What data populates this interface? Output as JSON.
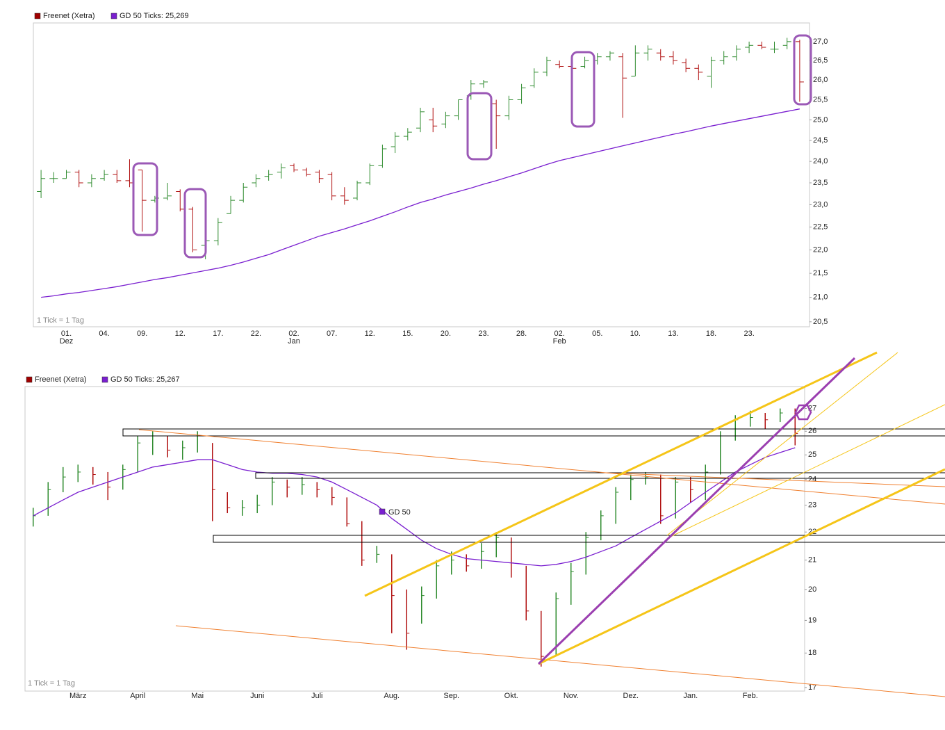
{
  "chart_data": [
    {
      "type": "ohlc",
      "log_scale": true,
      "note": "1 Tick = 1 Tag",
      "up_color": "#2e8b2e",
      "down_color": "#b01010",
      "categories": [
        null,
        null,
        "01.",
        null,
        null,
        "04.",
        null,
        null,
        "09.",
        null,
        null,
        "12.",
        null,
        null,
        "17.",
        null,
        null,
        "22.",
        null,
        null,
        "02.",
        null,
        null,
        "07.",
        null,
        null,
        "12.",
        null,
        null,
        "15.",
        null,
        null,
        "20.",
        null,
        null,
        "23.",
        null,
        null,
        "28.",
        null,
        null,
        "02.",
        null,
        null,
        "05.",
        null,
        null,
        "10.",
        null,
        null,
        "13.",
        null,
        null,
        "18.",
        null,
        null,
        "23.",
        null,
        null,
        null,
        null
      ],
      "x_sublabels": [
        null,
        null,
        "Dez",
        null,
        null,
        null,
        null,
        null,
        null,
        null,
        null,
        null,
        null,
        null,
        null,
        null,
        null,
        null,
        null,
        null,
        "Jan",
        null,
        null,
        null,
        null,
        null,
        null,
        null,
        null,
        null,
        null,
        null,
        null,
        null,
        null,
        null,
        null,
        null,
        null,
        null,
        null,
        "Feb",
        null,
        null,
        null,
        null,
        null,
        null,
        null,
        null,
        null,
        null,
        null,
        null,
        null,
        null,
        null,
        null,
        null,
        null,
        null
      ],
      "series": [
        {
          "name": "Freenet (Xetra)",
          "color": "#a00000",
          "open": [
            23.3,
            23.6,
            23.6,
            23.75,
            23.5,
            23.6,
            23.7,
            23.55,
            23.8,
            23.1,
            23.15,
            23.3,
            22.9,
            22.1,
            22.2,
            22.8,
            23.1,
            23.5,
            23.65,
            23.75,
            23.9,
            23.8,
            23.75,
            23.7,
            23.2,
            23.15,
            23.5,
            23.9,
            24.35,
            24.6,
            24.8,
            25.0,
            24.9,
            25.1,
            25.6,
            25.9,
            25.4,
            25.1,
            25.5,
            25.85,
            26.2,
            26.4,
            26.35,
            26.35,
            26.5,
            26.6,
            26.6,
            26.1,
            26.7,
            26.7,
            26.6,
            26.45,
            26.3,
            26.1,
            26.5,
            26.6,
            26.85,
            26.9,
            26.8,
            26.9,
            27.0
          ],
          "high": [
            23.8,
            23.75,
            23.8,
            23.8,
            23.7,
            23.8,
            23.8,
            24.05,
            23.8,
            23.2,
            23.5,
            23.35,
            22.95,
            22.3,
            22.7,
            23.2,
            23.5,
            23.7,
            23.8,
            23.95,
            23.95,
            23.85,
            23.8,
            23.75,
            23.4,
            23.55,
            23.95,
            24.4,
            24.7,
            24.8,
            25.3,
            25.3,
            25.2,
            25.5,
            26.0,
            26.0,
            25.5,
            25.6,
            25.9,
            26.3,
            26.6,
            26.5,
            26.4,
            26.6,
            26.7,
            26.75,
            26.7,
            26.9,
            26.9,
            26.8,
            26.75,
            26.55,
            26.4,
            26.6,
            26.75,
            26.9,
            27.0,
            27.0,
            27.0,
            27.1,
            27.05
          ],
          "low": [
            23.15,
            23.5,
            23.6,
            23.4,
            23.4,
            23.55,
            23.5,
            23.4,
            22.4,
            23.05,
            23.1,
            22.85,
            21.95,
            21.8,
            22.1,
            22.8,
            23.05,
            23.4,
            23.55,
            23.6,
            23.75,
            23.65,
            23.5,
            23.1,
            23.0,
            23.1,
            23.45,
            23.85,
            24.2,
            24.5,
            24.7,
            24.7,
            24.8,
            25.0,
            25.5,
            25.8,
            24.3,
            25.0,
            25.4,
            25.8,
            26.1,
            26.3,
            26.2,
            26.3,
            26.4,
            26.5,
            25.05,
            26.1,
            26.5,
            26.5,
            26.4,
            26.2,
            26.0,
            25.8,
            26.4,
            26.5,
            26.7,
            26.8,
            26.7,
            26.8,
            25.45
          ],
          "close": [
            23.6,
            23.6,
            23.75,
            23.5,
            23.6,
            23.7,
            23.55,
            23.5,
            23.1,
            23.15,
            23.2,
            22.9,
            22.0,
            22.2,
            22.6,
            23.1,
            23.4,
            23.6,
            23.7,
            23.85,
            23.8,
            23.7,
            23.6,
            23.2,
            23.1,
            23.5,
            23.9,
            24.3,
            24.6,
            24.7,
            25.2,
            24.85,
            25.1,
            25.5,
            25.9,
            25.95,
            25.1,
            25.5,
            25.8,
            26.2,
            26.5,
            26.35,
            26.3,
            26.5,
            26.6,
            26.7,
            26.05,
            26.7,
            26.8,
            26.6,
            26.5,
            26.3,
            26.2,
            26.5,
            26.6,
            26.8,
            26.9,
            26.85,
            26.8,
            27.0,
            25.95
          ]
        },
        {
          "name": "GD 50 Ticks: 25,269",
          "color": "#7a1fd0",
          "values": [
            21.0,
            21.03,
            21.07,
            21.1,
            21.14,
            21.18,
            21.22,
            21.27,
            21.32,
            21.37,
            21.41,
            21.46,
            21.51,
            21.56,
            21.61,
            21.67,
            21.74,
            21.82,
            21.9,
            22.0,
            22.1,
            22.2,
            22.3,
            22.38,
            22.46,
            22.55,
            22.64,
            22.74,
            22.84,
            22.95,
            23.05,
            23.13,
            23.22,
            23.3,
            23.38,
            23.47,
            23.55,
            23.64,
            23.73,
            23.83,
            23.93,
            24.02,
            24.09,
            24.16,
            24.23,
            24.3,
            24.37,
            24.44,
            24.51,
            24.58,
            24.65,
            24.71,
            24.78,
            24.85,
            24.91,
            24.97,
            25.03,
            25.09,
            25.15,
            25.21,
            25.27
          ]
        }
      ],
      "ylim": [
        20.4,
        27.5
      ],
      "yticks": [
        {
          "value": 20.5,
          "label": "20,5"
        },
        {
          "value": 21,
          "label": "21,0"
        },
        {
          "value": 21.5,
          "label": "21,5"
        },
        {
          "value": 22,
          "label": "22,0"
        },
        {
          "value": 22.5,
          "label": "22,5"
        },
        {
          "value": 23,
          "label": "23,0"
        },
        {
          "value": 23.5,
          "label": "23,5"
        },
        {
          "value": 24,
          "label": "24,0"
        },
        {
          "value": 24.5,
          "label": "24,5"
        },
        {
          "value": 25,
          "label": "25,0"
        },
        {
          "value": 25.5,
          "label": "25,5"
        },
        {
          "value": 26,
          "label": "26,0"
        },
        {
          "value": 26.5,
          "label": "26,5"
        },
        {
          "value": 27,
          "label": "27,0"
        }
      ]
    },
    {
      "type": "hlc",
      "log_scale": true,
      "note": "1 Tick = 1 Tag",
      "ma_label": "GD 50",
      "up_color": "#2e8b2e",
      "down_color": "#b01010",
      "categories": [
        null,
        null,
        null,
        "März",
        null,
        null,
        null,
        "April",
        null,
        null,
        null,
        "Mai",
        null,
        null,
        null,
        "Juni",
        null,
        null,
        null,
        "Juli",
        null,
        null,
        null,
        null,
        "Aug.",
        null,
        null,
        null,
        "Sep.",
        null,
        null,
        null,
        "Okt.",
        null,
        null,
        null,
        "Nov.",
        null,
        null,
        null,
        "Dez.",
        null,
        null,
        null,
        "Jan.",
        null,
        null,
        null,
        "Feb.",
        null,
        null,
        null
      ],
      "series": [
        {
          "name": "Freenet (Xetra)",
          "color": "#a00000",
          "high": [
            22.9,
            23.9,
            24.5,
            24.6,
            24.5,
            24.3,
            24.6,
            25.8,
            26.0,
            25.8,
            25.6,
            26.0,
            25.5,
            23.5,
            23.2,
            23.4,
            24.1,
            24.0,
            24.1,
            23.9,
            23.7,
            23.3,
            22.4,
            21.5,
            21.2,
            20.0,
            20.1,
            21.0,
            21.3,
            21.2,
            21.6,
            22.0,
            21.8,
            20.8,
            19.3,
            19.9,
            20.9,
            22.0,
            22.8,
            23.7,
            24.2,
            24.3,
            24.2,
            24.1,
            24.1,
            24.6,
            26.0,
            26.7,
            26.9,
            26.8,
            27.0,
            27.0
          ],
          "low": [
            22.2,
            22.6,
            23.5,
            23.9,
            23.8,
            23.2,
            23.6,
            24.3,
            25.0,
            24.9,
            24.8,
            25.1,
            22.4,
            22.7,
            22.6,
            22.7,
            23.0,
            23.3,
            23.4,
            23.3,
            23.0,
            22.2,
            20.8,
            20.9,
            18.6,
            18.1,
            18.9,
            19.7,
            20.5,
            20.6,
            20.7,
            21.1,
            20.4,
            19.0,
            17.6,
            17.9,
            19.5,
            20.5,
            21.7,
            22.3,
            23.2,
            23.8,
            22.3,
            22.5,
            23.1,
            23.2,
            24.2,
            25.6,
            26.2,
            26.1,
            26.4,
            25.4
          ],
          "close": [
            22.6,
            23.6,
            24.1,
            24.3,
            24.2,
            23.7,
            24.4,
            25.5,
            25.8,
            25.2,
            25.3,
            25.8,
            23.6,
            22.9,
            22.9,
            23.0,
            23.9,
            23.7,
            23.8,
            23.6,
            23.3,
            22.3,
            21.0,
            21.2,
            19.8,
            18.6,
            19.8,
            20.8,
            21.0,
            20.8,
            21.3,
            21.8,
            20.9,
            19.3,
            17.9,
            19.7,
            20.6,
            21.8,
            22.6,
            23.5,
            24.0,
            24.1,
            22.6,
            23.9,
            23.6,
            24.3,
            25.8,
            26.5,
            26.6,
            26.5,
            26.8,
            25.9
          ]
        },
        {
          "name": "GD 50 Ticks: 25,267",
          "color": "#7a1fd0",
          "values": [
            22.6,
            22.9,
            23.2,
            23.5,
            23.7,
            23.9,
            24.1,
            24.3,
            24.5,
            24.6,
            24.7,
            24.8,
            24.8,
            24.6,
            24.4,
            24.3,
            24.25,
            24.25,
            24.2,
            24.1,
            23.9,
            23.6,
            23.3,
            23.0,
            22.5,
            22.1,
            21.7,
            21.4,
            21.2,
            21.05,
            21.0,
            20.95,
            20.9,
            20.85,
            20.8,
            20.85,
            20.95,
            21.1,
            21.3,
            21.5,
            21.8,
            22.1,
            22.4,
            22.7,
            23.1,
            23.5,
            23.9,
            24.3,
            24.6,
            24.9,
            25.1,
            25.3
          ]
        }
      ],
      "ylim": [
        16.9,
        28
      ],
      "yticks": [
        17,
        18,
        19,
        20,
        21,
        22,
        23,
        24,
        25,
        26,
        27
      ]
    }
  ]
}
